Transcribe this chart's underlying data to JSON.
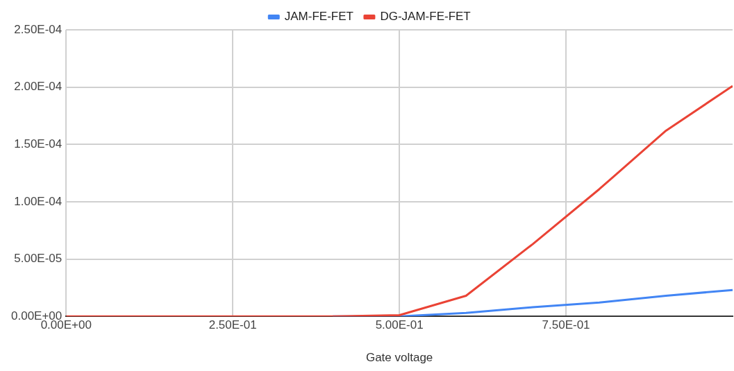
{
  "chart_data": {
    "type": "line",
    "xlabel": "Gate voltage",
    "legend": "top",
    "grid": true,
    "marker": "none",
    "line_style": "solid",
    "x": [
      0,
      0.1,
      0.2,
      0.3,
      0.4,
      0.5,
      0.6,
      0.7,
      0.8,
      0.9,
      1.0
    ],
    "xlim": [
      0,
      1
    ],
    "xticks": [
      {
        "value": 0,
        "label": "0.00E+00"
      },
      {
        "value": 0.25,
        "label": "2.50E-01"
      },
      {
        "value": 0.5,
        "label": "5.00E-01"
      },
      {
        "value": 0.75,
        "label": "7.50E-01"
      }
    ],
    "ylim": [
      0,
      0.00025
    ],
    "yticks": [
      {
        "value": 0,
        "label": "0.00E+00"
      },
      {
        "value": 5e-05,
        "label": "5.00E-05"
      },
      {
        "value": 0.0001,
        "label": "1.00E-04"
      },
      {
        "value": 0.00015,
        "label": "1.50E-04"
      },
      {
        "value": 0.0002,
        "label": "2.00E-04"
      },
      {
        "value": 0.00025,
        "label": "2.50E-04"
      }
    ],
    "series": [
      {
        "name": "JAM-FE-FET",
        "color": "#4285f4",
        "values": [
          null,
          null,
          null,
          null,
          0,
          0,
          3e-06,
          8e-06,
          1.2e-05,
          1.8e-05,
          2.3e-05
        ]
      },
      {
        "name": "DG-JAM-FE-FET",
        "color": "#ea4335",
        "values": [
          0,
          0,
          0,
          0,
          0,
          1e-06,
          1.8e-05,
          6.3e-05,
          0.000111,
          0.000162,
          0.000201
        ]
      }
    ]
  }
}
